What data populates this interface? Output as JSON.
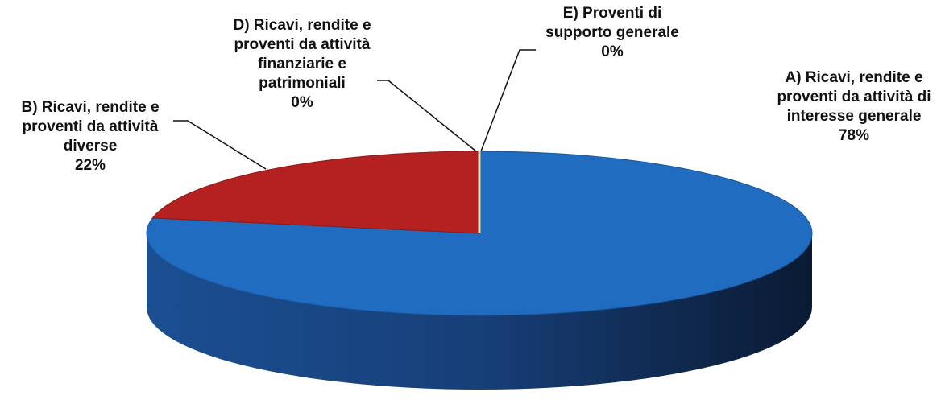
{
  "chart_data": {
    "type": "pie",
    "categories": [
      "A) Ricavi, rendite e proventi da attività di interesse generale",
      "B) Ricavi, rendite e proventi da attività diverse",
      "D) Ricavi, rendite e proventi da attività finanziarie e patrimoniali",
      "E) Proventi di supporto generale"
    ],
    "values": [
      78,
      22,
      0,
      0
    ],
    "value_labels": [
      "78%",
      "22%",
      "0%",
      "0%"
    ],
    "colors": [
      "#1f6cc0",
      "#b52020",
      "#e8dcb0",
      "#e8dcb0"
    ]
  }
}
